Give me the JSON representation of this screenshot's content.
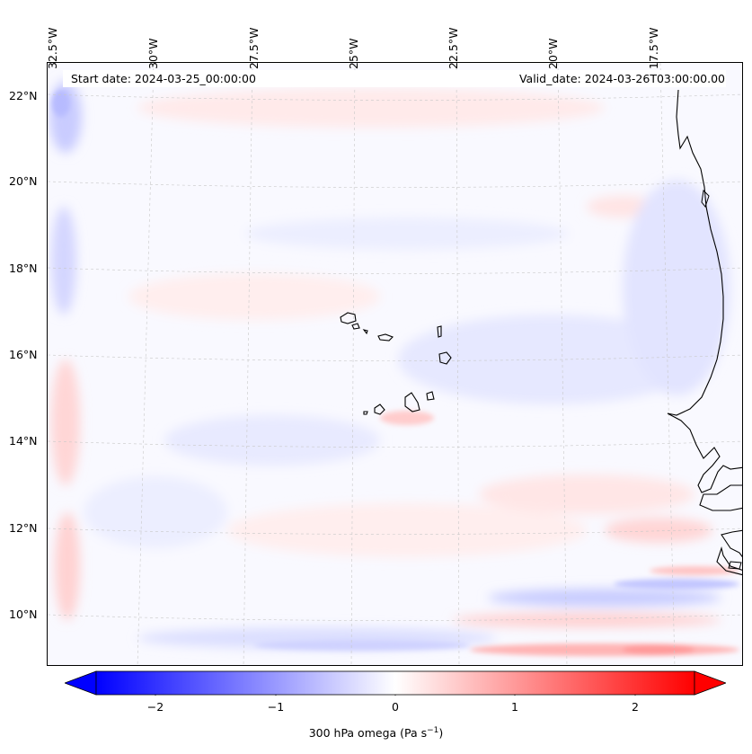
{
  "header": {
    "start_date": "Start date: 2024-03-25_00:00:00",
    "valid_date": "Valid_date: 2024-03-26T03:00:00.00"
  },
  "lon_labels": [
    "32.5°W",
    "30°W",
    "27.5°W",
    "25°W",
    "22.5°W",
    "20°W",
    "17.5°W"
  ],
  "lat_labels": [
    "22°N",
    "20°N",
    "18°N",
    "16°N",
    "14°N",
    "12°N",
    "10°N"
  ],
  "colorbar": {
    "ticks": [
      "−2",
      "−1",
      "0",
      "1",
      "2"
    ],
    "label_text": "300 hPa omega (Pa s",
    "label_exp": "−1",
    "label_close": ")",
    "range": [
      -2.5,
      2.5
    ],
    "cmap": "bwr",
    "extend": "both",
    "colors": {
      "min": "#0000ff",
      "mid": "#ffffff",
      "max": "#ff0000"
    }
  },
  "map": {
    "projection": "Lambert conformal",
    "extent_lon": [
      -33,
      -15
    ],
    "extent_lat": [
      9,
      23
    ],
    "gridlines": true,
    "features": [
      "coastline",
      "Cape Verde islands"
    ]
  }
}
